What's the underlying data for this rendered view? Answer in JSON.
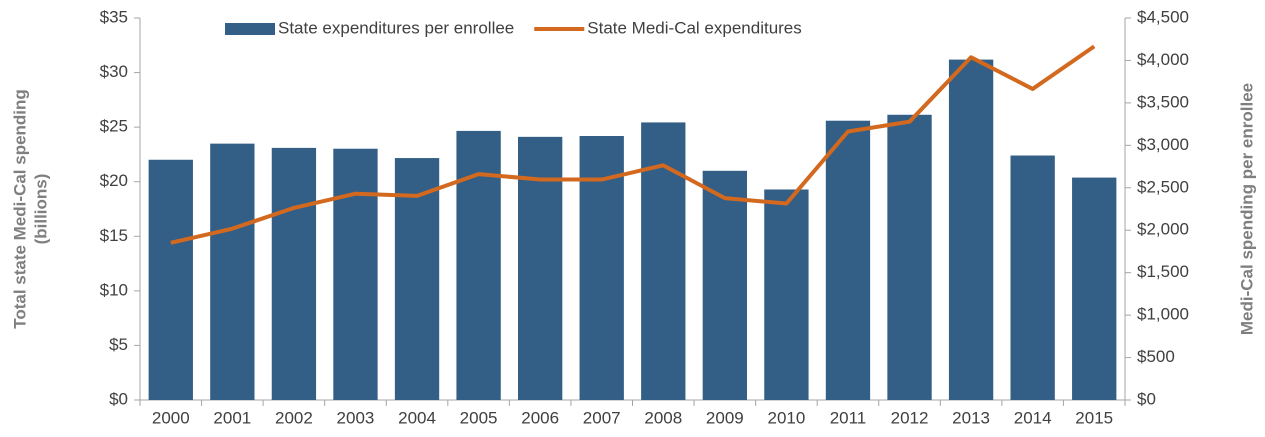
{
  "chart_data": {
    "type": "bar-line",
    "y_label": [
      "Total state Medi-Cal spending",
      "(billions)"
    ],
    "y2_label": "Medi-Cal spending per enrollee",
    "categories": [
      "2000",
      "2001",
      "2002",
      "2003",
      "2004",
      "2005",
      "2006",
      "2007",
      "2008",
      "2009",
      "2010",
      "2011",
      "2012",
      "2013",
      "2014",
      "2015"
    ],
    "series": [
      {
        "name": "State expenditures per enrollee",
        "type": "bar",
        "axis": "y2",
        "color": "#335f86",
        "values": [
          2830,
          3020,
          2970,
          2960,
          2850,
          3170,
          3100,
          3110,
          3270,
          2700,
          2480,
          3290,
          3360,
          4010,
          2880,
          2620
        ]
      },
      {
        "name": "State Medi-Cal expenditures",
        "type": "line",
        "axis": "y",
        "color": "#d2691e",
        "values": [
          14.4,
          15.7,
          17.6,
          18.9,
          18.7,
          20.7,
          20.2,
          20.2,
          21.5,
          18.5,
          18.0,
          24.6,
          25.5,
          31.4,
          28.5,
          32.4
        ]
      }
    ],
    "ylim": [
      0,
      35
    ],
    "yticks": [
      {
        "value": 0,
        "label": "$0"
      },
      {
        "value": 5,
        "label": "$5"
      },
      {
        "value": 10,
        "label": "$10"
      },
      {
        "value": 15,
        "label": "$15"
      },
      {
        "value": 20,
        "label": "$20"
      },
      {
        "value": 25,
        "label": "$25"
      },
      {
        "value": 30,
        "label": "$30"
      },
      {
        "value": 35,
        "label": "$35"
      }
    ],
    "y2lim": [
      0,
      4500
    ],
    "y2ticks": [
      {
        "value": 0,
        "label": "$0"
      },
      {
        "value": 500,
        "label": "$500"
      },
      {
        "value": 1000,
        "label": "$1,000"
      },
      {
        "value": 1500,
        "label": "$1,500"
      },
      {
        "value": 2000,
        "label": "$2,000"
      },
      {
        "value": 2500,
        "label": "$2,500"
      },
      {
        "value": 3000,
        "label": "$3,000"
      },
      {
        "value": 3500,
        "label": "$3,500"
      },
      {
        "value": 4000,
        "label": "$4,000"
      },
      {
        "value": 4500,
        "label": "$4,500"
      }
    ],
    "legend": "top",
    "grid": false
  }
}
